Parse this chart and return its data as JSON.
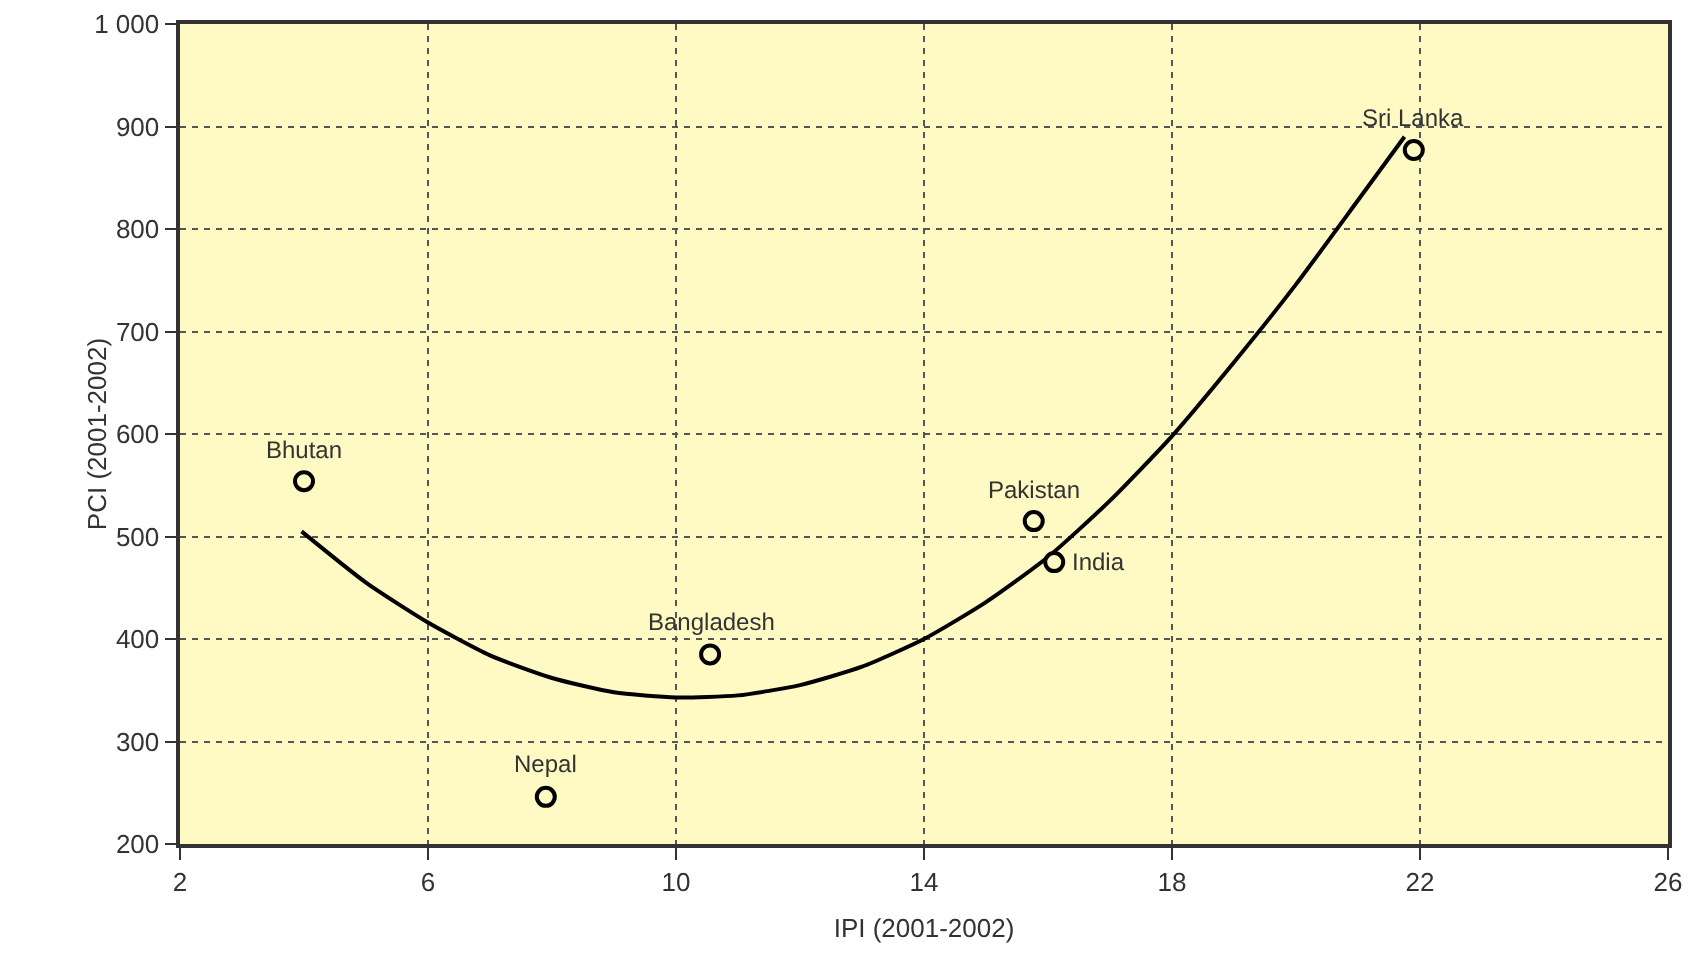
{
  "chart_data": {
    "type": "scatter",
    "xlabel": "IPI (2001-2002)",
    "ylabel": "PCI (2001-2002)",
    "xlim": [
      2,
      26
    ],
    "xticks": [
      2,
      6,
      10,
      14,
      18,
      22,
      26
    ],
    "ylim": [
      200,
      1000
    ],
    "yticks": [
      200,
      300,
      400,
      500,
      600,
      700,
      800,
      900,
      {
        "value": 1000,
        "label": "1 000"
      }
    ],
    "grid": true,
    "series": [
      {
        "marker": "circle",
        "color": "#000000",
        "x": [
          4.0,
          7.9,
          10.55,
          15.77,
          16.1,
          21.9
        ],
        "values": [
          554,
          246,
          385,
          515,
          475,
          877
        ]
      },
      {
        "type": "line",
        "color": "#000000",
        "line_style": "solid",
        "x": [
          3.96,
          5,
          6,
          7,
          8,
          9,
          10,
          11,
          12,
          13,
          14,
          15,
          16,
          17,
          18,
          19,
          20,
          21,
          21.75
        ],
        "values": [
          505,
          455,
          416,
          384,
          362,
          348,
          343,
          345,
          355,
          373,
          400,
          436,
          480,
          535,
          598,
          670,
          746,
          828,
          890
        ]
      }
    ],
    "annotations": [
      {
        "text": "Bhutan",
        "x": 4.0,
        "y": 554
      },
      {
        "text": "Nepal",
        "x": 7.9,
        "y": 246
      },
      {
        "text": "Bangladesh",
        "x": 10.55,
        "y": 385
      },
      {
        "text": "Pakistan",
        "x": 15.77,
        "y": 515
      },
      {
        "text": "India",
        "x": 16.1,
        "y": 475
      },
      {
        "text": "Sri Lanka",
        "x": 21.9,
        "y": 877
      }
    ]
  }
}
